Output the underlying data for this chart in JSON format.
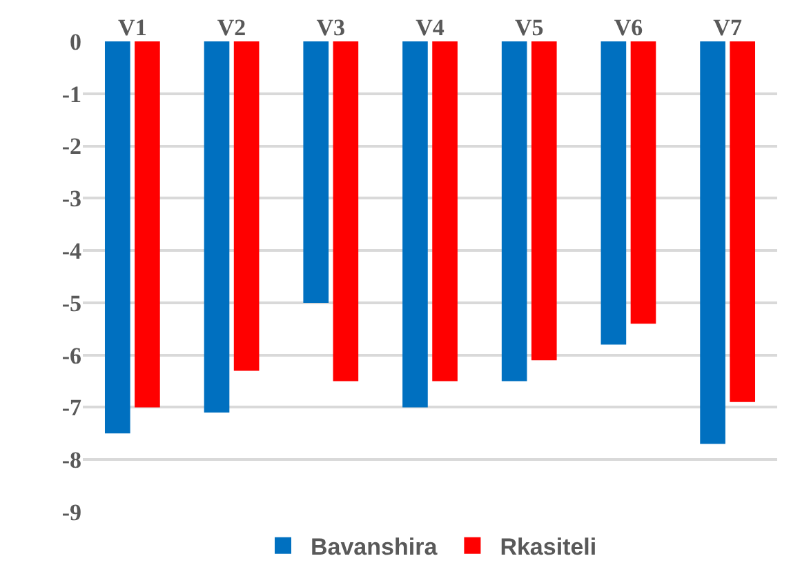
{
  "chart_data": {
    "type": "bar",
    "categories": [
      "V1",
      "V2",
      "V3",
      "V4",
      "V5",
      "V6",
      "V7"
    ],
    "series": [
      {
        "name": "Bavanshira",
        "color": "#0070c0",
        "values": [
          -7.5,
          -7.1,
          -5.0,
          -7.0,
          -6.5,
          -5.8,
          -7.7
        ]
      },
      {
        "name": "Rkasiteli",
        "color": "#ff0000",
        "values": [
          -7.0,
          -6.3,
          -6.5,
          -6.5,
          -6.1,
          -5.4,
          -6.9
        ]
      }
    ],
    "ylim": [
      -9,
      0
    ],
    "yticks": [
      0,
      -1,
      -2,
      -3,
      -4,
      -5,
      -6,
      -7,
      -8,
      -9
    ],
    "grid": "y",
    "legend": "bottom"
  }
}
